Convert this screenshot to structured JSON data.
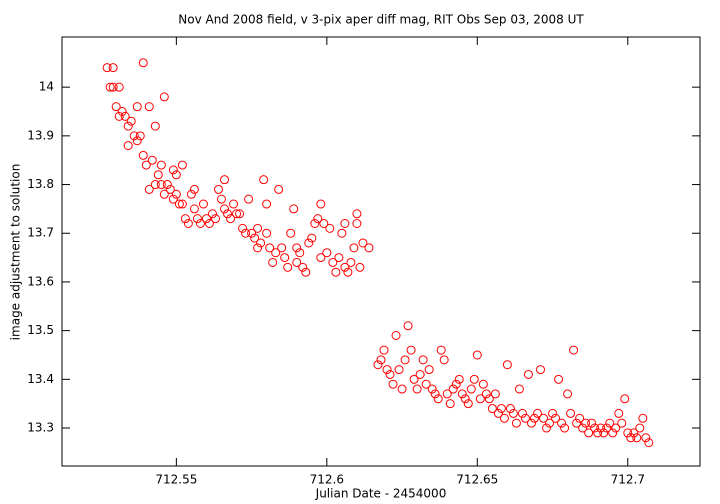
{
  "chart_data": {
    "type": "scatter",
    "title": "Nov And 2008 field, v 3-pix aper diff mag, RIT Obs Sep 03, 2008 UT",
    "x_label": "Julian Date - 2454000",
    "y_label": "image adjustment to solution",
    "color": "#ff0000",
    "xlim": [
      712.512,
      712.724
    ],
    "ylim": [
      13.222,
      14.103
    ],
    "xticks": [
      712.55,
      712.6,
      712.65,
      712.7
    ],
    "yticks": [
      13.3,
      13.4,
      13.5,
      13.6,
      13.7,
      13.8,
      13.9,
      14
    ],
    "x": [
      712.527,
      712.528,
      712.529,
      712.529,
      712.53,
      712.531,
      712.531,
      712.532,
      712.533,
      712.534,
      712.534,
      712.535,
      712.536,
      712.537,
      712.537,
      712.538,
      712.539,
      712.539,
      712.54,
      712.541,
      712.541,
      712.542,
      712.543,
      712.543,
      712.544,
      712.545,
      712.545,
      712.546,
      712.546,
      712.547,
      712.548,
      712.549,
      712.549,
      712.55,
      712.55,
      712.551,
      712.552,
      712.552,
      712.553,
      712.554,
      712.555,
      712.556,
      712.556,
      712.557,
      712.558,
      712.559,
      712.56,
      712.561,
      712.562,
      712.563,
      712.564,
      712.565,
      712.566,
      712.566,
      712.567,
      712.568,
      712.569,
      712.57,
      712.571,
      712.572,
      712.573,
      712.574,
      712.575,
      712.576,
      712.577,
      712.577,
      712.578,
      712.579,
      712.58,
      712.58,
      712.581,
      712.582,
      712.583,
      712.584,
      712.585,
      712.586,
      712.587,
      712.588,
      712.589,
      712.59,
      712.59,
      712.591,
      712.592,
      712.593,
      712.594,
      712.595,
      712.596,
      712.597,
      712.598,
      712.598,
      712.599,
      712.6,
      712.601,
      712.602,
      712.603,
      712.604,
      712.605,
      712.606,
      712.606,
      712.607,
      712.608,
      712.609,
      712.61,
      712.61,
      712.611,
      712.612,
      712.614,
      712.617,
      712.618,
      712.619,
      712.62,
      712.621,
      712.622,
      712.623,
      712.624,
      712.625,
      712.626,
      712.627,
      712.628,
      712.629,
      712.63,
      712.631,
      712.632,
      712.633,
      712.634,
      712.635,
      712.636,
      712.637,
      712.638,
      712.639,
      712.64,
      712.641,
      712.642,
      712.643,
      712.644,
      712.645,
      712.646,
      712.647,
      712.648,
      712.649,
      712.65,
      712.651,
      712.652,
      712.653,
      712.654,
      712.655,
      712.656,
      712.657,
      712.658,
      712.659,
      712.66,
      712.661,
      712.662,
      712.663,
      712.664,
      712.665,
      712.666,
      712.667,
      712.668,
      712.669,
      712.67,
      712.671,
      712.672,
      712.673,
      712.674,
      712.675,
      712.676,
      712.677,
      712.678,
      712.679,
      712.68,
      712.681,
      712.682,
      712.683,
      712.684,
      712.685,
      712.686,
      712.687,
      712.688,
      712.689,
      712.69,
      712.691,
      712.692,
      712.693,
      712.694,
      712.695,
      712.696,
      712.697,
      712.698,
      712.699,
      712.7,
      712.701,
      712.702,
      712.703,
      712.704,
      712.705,
      712.706,
      712.707
    ],
    "values": [
      14.04,
      14.0,
      14.0,
      14.04,
      13.96,
      13.94,
      14.0,
      13.95,
      13.94,
      13.92,
      13.88,
      13.93,
      13.9,
      13.96,
      13.89,
      13.9,
      13.86,
      14.05,
      13.84,
      13.79,
      13.96,
      13.85,
      13.92,
      13.8,
      13.82,
      13.84,
      13.8,
      13.78,
      13.98,
      13.8,
      13.79,
      13.77,
      13.83,
      13.82,
      13.78,
      13.76,
      13.84,
      13.76,
      13.73,
      13.72,
      13.78,
      13.79,
      13.75,
      13.73,
      13.72,
      13.76,
      13.73,
      13.72,
      13.74,
      13.73,
      13.79,
      13.77,
      13.75,
      13.81,
      13.74,
      13.73,
      13.76,
      13.74,
      13.74,
      13.71,
      13.7,
      13.77,
      13.7,
      13.69,
      13.71,
      13.67,
      13.68,
      13.81,
      13.7,
      13.76,
      13.67,
      13.64,
      13.66,
      13.79,
      13.67,
      13.65,
      13.63,
      13.7,
      13.75,
      13.67,
      13.64,
      13.66,
      13.63,
      13.62,
      13.68,
      13.69,
      13.72,
      13.73,
      13.76,
      13.65,
      13.72,
      13.66,
      13.71,
      13.64,
      13.62,
      13.65,
      13.7,
      13.72,
      13.63,
      13.62,
      13.64,
      13.67,
      13.72,
      13.74,
      13.63,
      13.68,
      13.67,
      13.43,
      13.44,
      13.46,
      13.42,
      13.41,
      13.39,
      13.49,
      13.42,
      13.38,
      13.44,
      13.51,
      13.46,
      13.4,
      13.38,
      13.41,
      13.44,
      13.39,
      13.42,
      13.38,
      13.37,
      13.36,
      13.46,
      13.44,
      13.37,
      13.35,
      13.38,
      13.39,
      13.4,
      13.37,
      13.36,
      13.35,
      13.38,
      13.4,
      13.45,
      13.36,
      13.39,
      13.37,
      13.36,
      13.34,
      13.37,
      13.33,
      13.34,
      13.32,
      13.43,
      13.34,
      13.33,
      13.31,
      13.38,
      13.33,
      13.32,
      13.41,
      13.31,
      13.32,
      13.33,
      13.42,
      13.32,
      13.3,
      13.31,
      13.33,
      13.32,
      13.4,
      13.31,
      13.3,
      13.37,
      13.33,
      13.46,
      13.31,
      13.32,
      13.3,
      13.31,
      13.29,
      13.31,
      13.3,
      13.29,
      13.3,
      13.29,
      13.3,
      13.31,
      13.29,
      13.3,
      13.33,
      13.31,
      13.36,
      13.29,
      13.28,
      13.29,
      13.28,
      13.3,
      13.32,
      13.28,
      13.27
    ]
  }
}
